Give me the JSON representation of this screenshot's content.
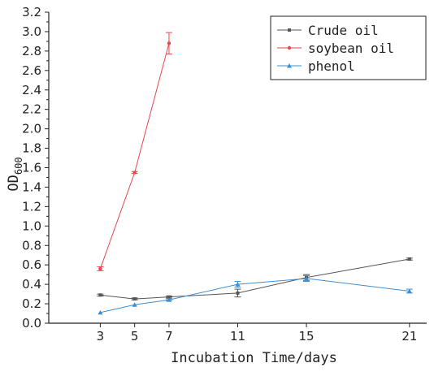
{
  "chart_data": {
    "type": "line",
    "title": "",
    "xlabel": "Incubation Time/days",
    "ylabel": {
      "main": "OD",
      "sub": "600"
    },
    "x": [
      3,
      5,
      7,
      11,
      15,
      21
    ],
    "x_tick_labels": [
      "3",
      "5",
      "7",
      "11",
      "15",
      "21"
    ],
    "xlim": [
      0,
      22
    ],
    "ylim": [
      0.0,
      3.2
    ],
    "y_tick_labels": [
      "0.0",
      "0.2",
      "0.4",
      "0.6",
      "0.8",
      "1.0",
      "1.2",
      "1.4",
      "1.6",
      "1.8",
      "2.0",
      "2.2",
      "2.4",
      "2.6",
      "2.8",
      "3.0",
      "3.2"
    ],
    "grid": false,
    "legend_position": "top-right",
    "series": [
      {
        "name": "Crude oil",
        "color": "#555555",
        "marker": "square",
        "points": [
          {
            "x": 3,
            "y": 0.29,
            "err": 0.01
          },
          {
            "x": 5,
            "y": 0.25,
            "err": 0.01
          },
          {
            "x": 7,
            "y": 0.27,
            "err": 0.01
          },
          {
            "x": 11,
            "y": 0.31,
            "err": 0.04
          },
          {
            "x": 15,
            "y": 0.47,
            "err": 0.03
          },
          {
            "x": 21,
            "y": 0.66,
            "err": 0.01
          }
        ]
      },
      {
        "name": "soybean oil",
        "color": "#e8474b",
        "marker": "circle",
        "points": [
          {
            "x": 3,
            "y": 0.56,
            "err": 0.02
          },
          {
            "x": 5,
            "y": 1.55,
            "err": 0.01
          },
          {
            "x": 7,
            "y": 2.88,
            "err": 0.11
          }
        ]
      },
      {
        "name": "phenol",
        "color": "#3b8fd4",
        "marker": "triangle",
        "points": [
          {
            "x": 3,
            "y": 0.11,
            "err": 0.0
          },
          {
            "x": 5,
            "y": 0.19,
            "err": 0.0
          },
          {
            "x": 7,
            "y": 0.24,
            "err": 0.01
          },
          {
            "x": 11,
            "y": 0.4,
            "err": 0.03
          },
          {
            "x": 15,
            "y": 0.46,
            "err": 0.03
          },
          {
            "x": 21,
            "y": 0.33,
            "err": 0.02
          }
        ]
      }
    ]
  }
}
